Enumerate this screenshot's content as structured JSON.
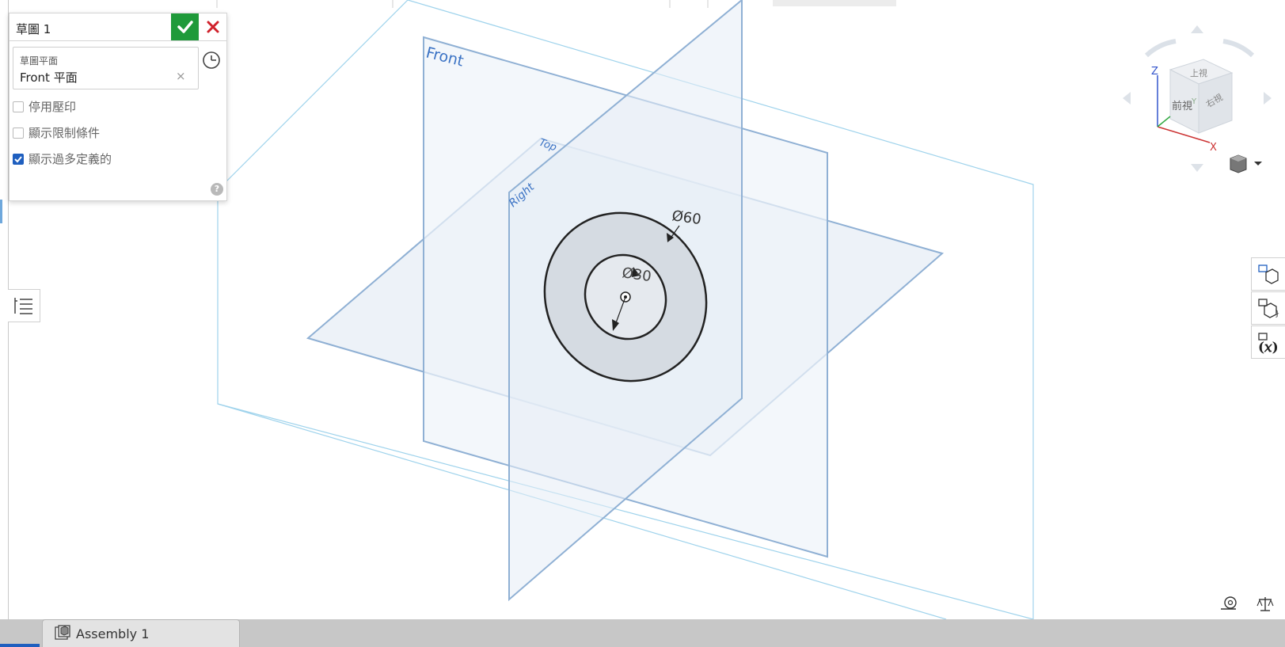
{
  "sketch_panel": {
    "title": "草圖 1",
    "plane_field_label": "草圖平面",
    "plane_field_value": "Front 平面",
    "clear_glyph": "×",
    "options": [
      {
        "label": "停用壓印",
        "checked": false
      },
      {
        "label": "顯示限制條件",
        "checked": false
      },
      {
        "label": "顯示過多定義的",
        "checked": true
      }
    ],
    "help_glyph": "?"
  },
  "viewport": {
    "plane_labels": {
      "front": "Front",
      "top": "Top",
      "right": "Right"
    },
    "dimensions": {
      "outer": "Ø60",
      "inner": "Ø30"
    }
  },
  "view_cube": {
    "axis_x": "X",
    "axis_y": "Y",
    "axis_z": "Z",
    "face_top": "上視",
    "face_front": "前視",
    "face_right": "右視"
  },
  "tabs": [
    {
      "label": "Assembly 1",
      "icon": "assembly-icon"
    }
  ],
  "colors": {
    "ok": "#1f9a3a",
    "cancel": "#d0212b",
    "plane_fill": "#e8eef6",
    "plane_edge": "#8fb0d4",
    "plane_label": "#3a72c4",
    "accent": "#1f5fbf"
  }
}
